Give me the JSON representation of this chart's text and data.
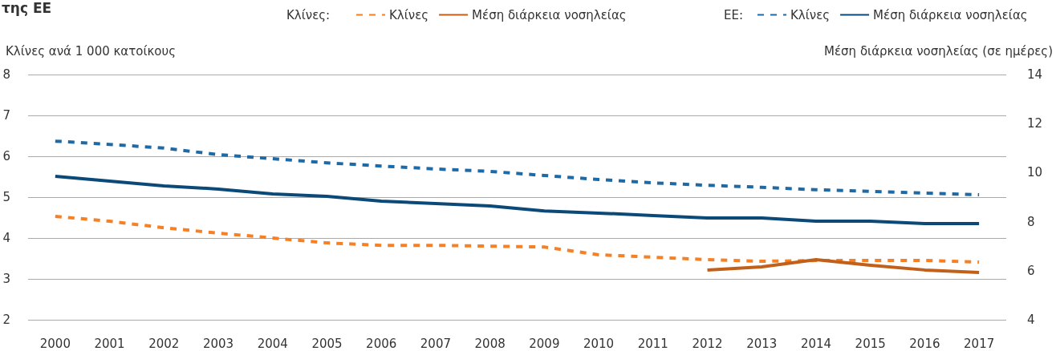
{
  "chart_data": {
    "type": "line",
    "title": "της ΕΕ",
    "legend_title": "Κλίνες:",
    "annotations": [
      "ΕΕ:"
    ],
    "ylabel": "Κλίνες ανά 1 000 κατοίκους",
    "y2label": "Μέση διάρκεια νοσηλείας (σε ημέρες)",
    "categories": [
      "2000",
      "2001",
      "2002",
      "2003",
      "2004",
      "2005",
      "2006",
      "2007",
      "2008",
      "2009",
      "2010",
      "2011",
      "2012",
      "2013",
      "2014",
      "2015",
      "2016",
      "2017"
    ],
    "series": [
      {
        "name": "Κλίνες",
        "color": "#f58025",
        "line_style": "dashed",
        "values": [
          4.53,
          4.41,
          4.25,
          4.12,
          4.0,
          3.88,
          3.82,
          3.82,
          3.8,
          3.78,
          3.59,
          3.53,
          3.47,
          3.43,
          3.45,
          3.45,
          3.45,
          3.41
        ]
      },
      {
        "name": "Μέση διάρκεια νοσηλείας",
        "color": "#c0601a",
        "line_style": "solid",
        "axis": "y2",
        "values": [
          null,
          null,
          null,
          null,
          null,
          null,
          null,
          null,
          null,
          null,
          null,
          null,
          6.03,
          6.16,
          6.45,
          6.22,
          6.03,
          5.93
        ]
      },
      {
        "name": "Κλίνες",
        "color": "#1f6aa5",
        "line_style": "dashed",
        "values": [
          6.37,
          6.29,
          6.2,
          6.04,
          5.94,
          5.84,
          5.76,
          5.69,
          5.63,
          5.53,
          5.43,
          5.35,
          5.29,
          5.24,
          5.18,
          5.14,
          5.1,
          5.06
        ]
      },
      {
        "name": "Μέση διάρκεια νοσηλείας",
        "color": "#0b4a78",
        "line_style": "solid",
        "axis": "y2",
        "values": [
          9.85,
          9.65,
          9.46,
          9.33,
          9.13,
          9.03,
          8.84,
          8.74,
          8.64,
          8.44,
          8.35,
          8.25,
          8.15,
          8.15,
          8.02,
          8.02,
          7.92,
          7.92
        ]
      }
    ],
    "ylim": [
      2,
      8
    ],
    "yticks": [
      2,
      3,
      4,
      5,
      6,
      7,
      8
    ],
    "y2lim": [
      4,
      14
    ],
    "y2ticks": [
      4,
      6,
      8,
      10,
      12,
      14
    ],
    "grid": "y",
    "legend": "top right",
    "marker": "none"
  }
}
